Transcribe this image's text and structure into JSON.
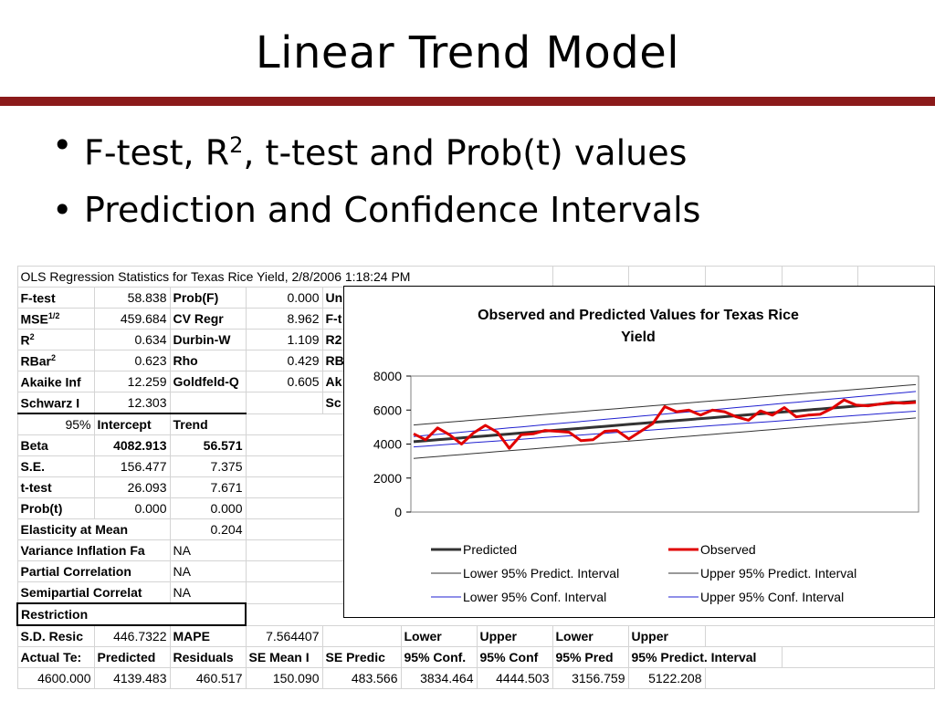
{
  "slide": {
    "title": "Linear Trend Model",
    "bullet1_pre": "F-test, R",
    "bullet1_sup": "2",
    "bullet1_post": ", t-test and Prob(t) values",
    "bullet2": "Prediction and Confidence Intervals"
  },
  "sheet": {
    "header": "OLS Regression Statistics for Texas Rice Yield, 2/8/2006 1:18:24 PM",
    "stats_rows": [
      {
        "label": "F-test",
        "label_sup": "",
        "value": "58.838",
        "label2": "Prob(F)",
        "value2": "0.000",
        "label3": "Un"
      },
      {
        "label": "MSE",
        "label_sup": "1/2",
        "value": "459.684",
        "label2": "CV Regr",
        "value2": "8.962",
        "label3": "F-t"
      },
      {
        "label": "R",
        "label_sup": "2",
        "value": "0.634",
        "label2": "Durbin-W",
        "value2": "1.109",
        "label3": "R2"
      },
      {
        "label": "RBar",
        "label_sup": "2",
        "value": "0.623",
        "label2": "Rho",
        "value2": "0.429",
        "label3": "RB"
      },
      {
        "label": "Akaike Inf",
        "label_sup": "",
        "value": "12.259",
        "label2": "Goldfeld-Q",
        "value2": "0.605",
        "label3": "Ak"
      },
      {
        "label": "Schwarz I",
        "label_sup": "",
        "value": "12.303",
        "label2": "",
        "value2": "",
        "label3": "Sc"
      }
    ],
    "coef_header": {
      "c1": "95%",
      "c2": "Intercept",
      "c3": "Trend"
    },
    "coef_rows": [
      {
        "label": "Beta",
        "intercept": "4082.913",
        "trend": "56.571"
      },
      {
        "label": "S.E.",
        "intercept": "156.477",
        "trend": "7.375"
      },
      {
        "label": "t-test",
        "intercept": "26.093",
        "trend": "7.671"
      },
      {
        "label": "Prob(t)",
        "intercept": "0.000",
        "trend": "0.000"
      },
      {
        "label": "Elasticity at Mean",
        "intercept": "",
        "trend": "0.204"
      }
    ],
    "extra_rows": [
      {
        "label": "Variance Inflation Fa",
        "value": "NA"
      },
      {
        "label": "Partial Correlation",
        "value": "NA"
      },
      {
        "label": "Semipartial Correlat",
        "value": "NA"
      }
    ],
    "restriction_label": "Restriction",
    "sd_row": {
      "label": "S.D. Resic",
      "value": "446.7322",
      "mape_label": "MAPE",
      "mape_value": "7.564407",
      "lower1": "Lower",
      "upper1": "Upper",
      "lower2": "Lower",
      "upper2": "Upper"
    },
    "col_headers": [
      "Actual Te:",
      "Predicted",
      "Residuals",
      "SE Mean I",
      "SE Predic",
      "95% Conf.",
      "95% Conf",
      "95% Pred",
      "95% Predict. Interval"
    ],
    "data_row": [
      "4600.000",
      "4139.483",
      "460.517",
      "150.090",
      "483.566",
      "3834.464",
      "4444.503",
      "3156.759",
      "5122.208"
    ]
  },
  "chart_data": {
    "type": "line",
    "title": "Observed and Predicted Values for Texas Rice Yield",
    "title_line1": "Observed and Predicted Values for Texas Rice",
    "title_line2": "Yield",
    "ylim": [
      0,
      8000
    ],
    "y_ticks": [
      "0",
      "2000",
      "4000",
      "6000",
      "8000"
    ],
    "grid": false,
    "legend_position": "bottom",
    "x": [
      1,
      2,
      3,
      4,
      5,
      6,
      7,
      8,
      9,
      10,
      11,
      12,
      13,
      14,
      15,
      16,
      17,
      18,
      19,
      20,
      21,
      22,
      23,
      24,
      25,
      26,
      27,
      28,
      29,
      30,
      31,
      32,
      33,
      34,
      35,
      36,
      37,
      38,
      39,
      40,
      41,
      42,
      43
    ],
    "series": [
      {
        "name": "Predicted",
        "color": "#333333",
        "width": 3,
        "start": 4139,
        "slope": 56.571
      },
      {
        "name": "Observed",
        "color": "#e00000",
        "width": 3,
        "values": [
          4600,
          4250,
          4950,
          4550,
          4000,
          4650,
          5100,
          4700,
          3750,
          4550,
          4600,
          4800,
          4750,
          4700,
          4200,
          4250,
          4750,
          4800,
          4300,
          4750,
          5200,
          6200,
          5900,
          6000,
          5700,
          6000,
          5900,
          5600,
          5400,
          5950,
          5700,
          6150,
          5600,
          5700,
          5750,
          6100,
          6600,
          6300,
          6250,
          6350,
          6450,
          6400,
          6450
        ]
      },
      {
        "name": "Lower 95% Predict. Interval",
        "color": "#333333",
        "width": 1,
        "start": 3157,
        "slope": 56.571
      },
      {
        "name": "Upper 95% Predict. Interval",
        "color": "#333333",
        "width": 1,
        "start": 5122,
        "slope": 56.571
      },
      {
        "name": "Lower 95% Conf. Interval",
        "color": "#2020d0",
        "width": 1,
        "start": 3834,
        "slope": 50
      },
      {
        "name": "Upper 95% Conf. Interval",
        "color": "#2020d0",
        "width": 1,
        "start": 4445,
        "slope": 63
      }
    ]
  }
}
